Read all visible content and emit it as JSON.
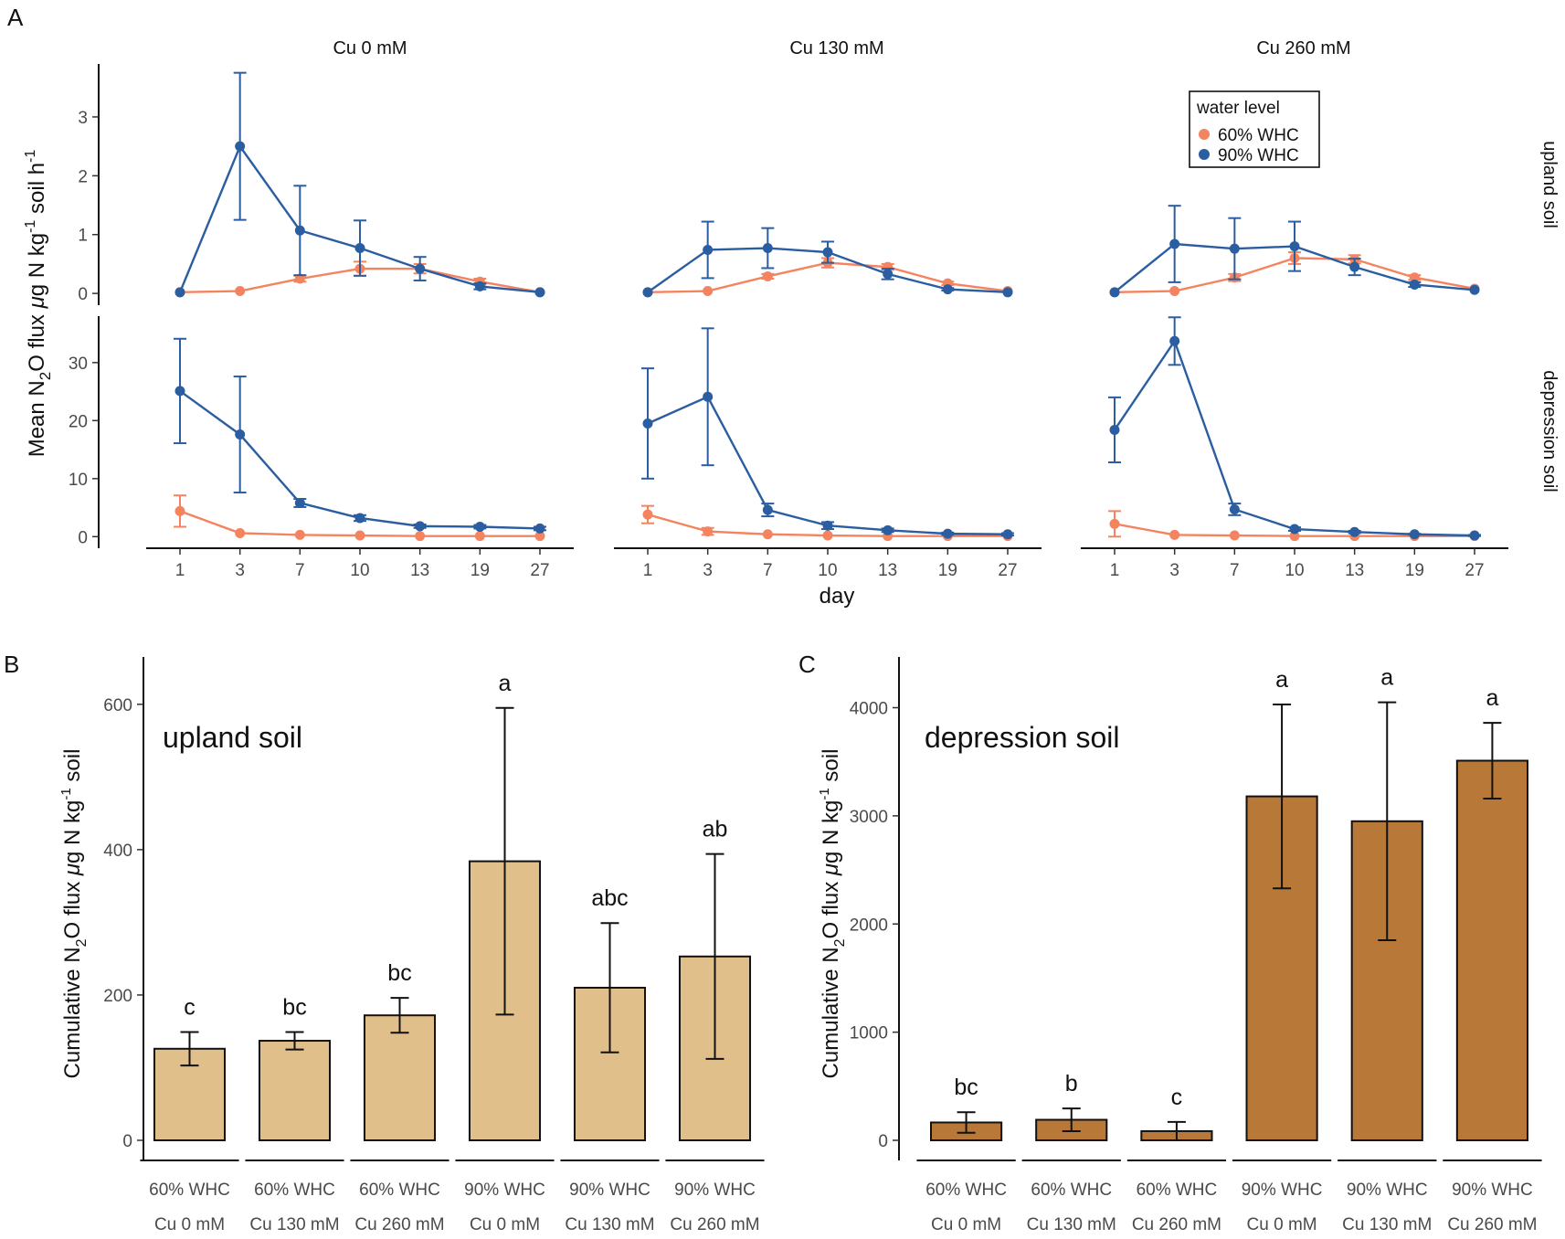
{
  "panel_letters": {
    "a": "A",
    "b": "B",
    "c": "C"
  },
  "colors": {
    "c60": "#F4845F",
    "c90": "#2B5DA1",
    "upland_bar": "#E1BF8A",
    "depression_bar": "#B87838"
  },
  "panel_a": {
    "strips": [
      "Cu 0 mM",
      "Cu 130 mM",
      "Cu 260 mM"
    ],
    "row_strips": [
      "upland soil",
      "depression soil"
    ],
    "ylabel": "Mean N2O flux μg N kg-1 soil h-1",
    "xlabel": "day",
    "legend": {
      "title": "water level",
      "items": [
        "60% WHC",
        "90% WHC"
      ]
    }
  },
  "panel_b": {
    "label": "upland soil",
    "ylabel": "Cumulative N2O flux μg N kg-1 soil"
  },
  "panel_c": {
    "label": "depression soil",
    "ylabel": "Cumulative N2O flux μg N kg-1 soil"
  },
  "chart_data": [
    {
      "type": "line",
      "id": "A",
      "title": "",
      "xlabel": "day",
      "ylabel": "Mean N2O flux μg N kg-1 soil h-1",
      "x": [
        1,
        3,
        7,
        10,
        13,
        19,
        27
      ],
      "facets_columns": [
        "Cu 0 mM",
        "Cu 130 mM",
        "Cu 260 mM"
      ],
      "facets_rows": [
        "upland soil",
        "depression soil"
      ],
      "rows": [
        {
          "name": "upland soil",
          "ylim": [
            -0.2,
            3.9
          ],
          "yticks": [
            0,
            1,
            2,
            3
          ],
          "panels": [
            {
              "facet": "Cu 0 mM",
              "series": [
                {
                  "name": "60% WHC",
                  "values": [
                    0.02,
                    0.04,
                    0.25,
                    0.42,
                    0.42,
                    0.2,
                    0.02
                  ],
                  "err": [
                    0,
                    0,
                    0.05,
                    0.12,
                    0.08,
                    0.05,
                    0
                  ]
                },
                {
                  "name": "90% WHC",
                  "values": [
                    0.02,
                    2.5,
                    1.07,
                    0.77,
                    0.42,
                    0.12,
                    0.02
                  ],
                  "err": [
                    0,
                    1.25,
                    0.76,
                    0.47,
                    0.2,
                    0.05,
                    0
                  ]
                }
              ]
            },
            {
              "facet": "Cu 130 mM",
              "series": [
                {
                  "name": "60% WHC",
                  "values": [
                    0.02,
                    0.04,
                    0.29,
                    0.52,
                    0.45,
                    0.17,
                    0.04
                  ],
                  "err": [
                    0,
                    0,
                    0.04,
                    0.08,
                    0.05,
                    0.03,
                    0
                  ]
                },
                {
                  "name": "90% WHC",
                  "values": [
                    0.02,
                    0.74,
                    0.77,
                    0.7,
                    0.33,
                    0.07,
                    0.02
                  ],
                  "err": [
                    0,
                    0.48,
                    0.34,
                    0.18,
                    0.09,
                    0.02,
                    0
                  ]
                }
              ]
            },
            {
              "facet": "Cu 260 mM",
              "series": [
                {
                  "name": "60% WHC",
                  "values": [
                    0.02,
                    0.04,
                    0.27,
                    0.6,
                    0.58,
                    0.27,
                    0.08
                  ],
                  "err": [
                    0,
                    0,
                    0.06,
                    0.1,
                    0.07,
                    0.04,
                    0
                  ]
                },
                {
                  "name": "90% WHC",
                  "values": [
                    0.02,
                    0.84,
                    0.76,
                    0.8,
                    0.45,
                    0.15,
                    0.06
                  ],
                  "err": [
                    0,
                    0.65,
                    0.52,
                    0.42,
                    0.14,
                    0.04,
                    0
                  ]
                }
              ]
            }
          ]
        },
        {
          "name": "depression soil",
          "ylim": [
            -2,
            38
          ],
          "yticks": [
            0,
            10,
            20,
            30
          ],
          "panels": [
            {
              "facet": "Cu 0 mM",
              "series": [
                {
                  "name": "60% WHC",
                  "values": [
                    4.4,
                    0.6,
                    0.3,
                    0.2,
                    0.1,
                    0.1,
                    0.1
                  ],
                  "err": [
                    2.7,
                    0,
                    0,
                    0,
                    0,
                    0,
                    0
                  ]
                },
                {
                  "name": "90% WHC",
                  "values": [
                    25.1,
                    17.6,
                    5.8,
                    3.2,
                    1.8,
                    1.7,
                    1.4
                  ],
                  "err": [
                    9.0,
                    10.0,
                    0.7,
                    0.5,
                    0.3,
                    0.3,
                    0.3
                  ]
                }
              ]
            },
            {
              "facet": "Cu 130 mM",
              "series": [
                {
                  "name": "60% WHC",
                  "values": [
                    3.8,
                    0.9,
                    0.4,
                    0.2,
                    0.1,
                    0.1,
                    0.1
                  ],
                  "err": [
                    1.5,
                    0.6,
                    0,
                    0,
                    0,
                    0,
                    0
                  ]
                },
                {
                  "name": "90% WHC",
                  "values": [
                    19.5,
                    24.1,
                    4.6,
                    1.9,
                    1.1,
                    0.5,
                    0.4
                  ],
                  "err": [
                    9.5,
                    11.8,
                    1.1,
                    0.6,
                    0.3,
                    0.2,
                    0.2
                  ]
                }
              ]
            },
            {
              "facet": "Cu 260 mM",
              "series": [
                {
                  "name": "60% WHC",
                  "values": [
                    2.2,
                    0.3,
                    0.2,
                    0.1,
                    0.1,
                    0.1,
                    0.1
                  ],
                  "err": [
                    2.2,
                    0,
                    0,
                    0,
                    0,
                    0,
                    0
                  ]
                },
                {
                  "name": "90% WHC",
                  "values": [
                    18.4,
                    33.7,
                    4.7,
                    1.3,
                    0.8,
                    0.4,
                    0.2
                  ],
                  "err": [
                    5.6,
                    4.1,
                    1.0,
                    0.3,
                    0.2,
                    0.1,
                    0.1
                  ]
                }
              ]
            }
          ]
        }
      ],
      "legend": {
        "title": "water level",
        "entries": [
          "60% WHC",
          "90% WHC"
        ],
        "position": "top-right"
      }
    },
    {
      "type": "bar",
      "id": "B",
      "title": "upland soil",
      "ylabel": "Cumulative N2O flux μg N kg-1 soil",
      "ylim": [
        0,
        640
      ],
      "yticks": [
        0,
        200,
        400,
        600
      ],
      "categories": [
        [
          "60% WHC",
          "Cu 0 mM"
        ],
        [
          "60% WHC",
          "Cu 130 mM"
        ],
        [
          "60% WHC",
          "Cu 260 mM"
        ],
        [
          "90% WHC",
          "Cu 0 mM"
        ],
        [
          "90% WHC",
          "Cu 130 mM"
        ],
        [
          "90% WHC",
          "Cu 260 mM"
        ]
      ],
      "values": [
        126,
        137,
        172,
        384,
        210,
        253
      ],
      "err": [
        23,
        12,
        24,
        211,
        89,
        141
      ],
      "letters": [
        "c",
        "bc",
        "bc",
        "a",
        "abc",
        "ab"
      ]
    },
    {
      "type": "bar",
      "id": "C",
      "title": "depression soil",
      "ylabel": "Cumulative N2O flux μg N kg-1 soil",
      "ylim": [
        0,
        4300
      ],
      "yticks": [
        0,
        1000,
        2000,
        3000,
        4000
      ],
      "categories": [
        [
          "60% WHC",
          "Cu 0 mM"
        ],
        [
          "60% WHC",
          "Cu 130 mM"
        ],
        [
          "60% WHC",
          "Cu 260 mM"
        ],
        [
          "90% WHC",
          "Cu 0 mM"
        ],
        [
          "90% WHC",
          "Cu 130 mM"
        ],
        [
          "90% WHC",
          "Cu 260 mM"
        ]
      ],
      "values": [
        165,
        190,
        85,
        3180,
        2950,
        3510
      ],
      "err": [
        95,
        105,
        85,
        850,
        1100,
        350
      ],
      "letters": [
        "bc",
        "b",
        "c",
        "a",
        "a",
        "a"
      ]
    }
  ]
}
